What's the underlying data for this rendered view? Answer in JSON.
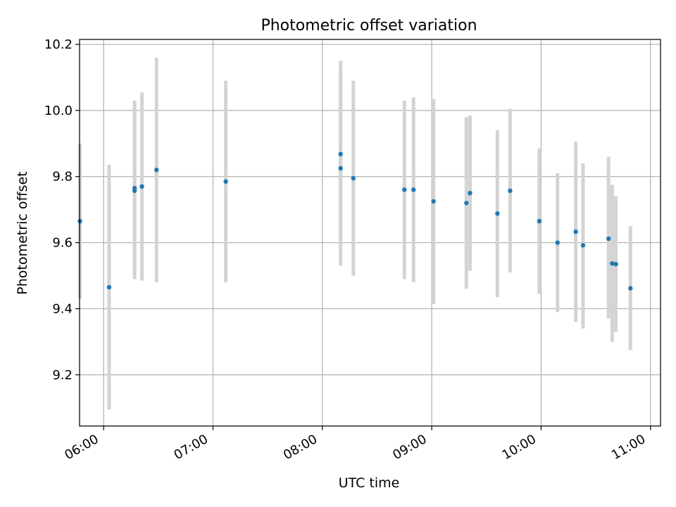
{
  "chart_data": {
    "type": "scatter",
    "title": "Photometric offset variation",
    "xlabel": "UTC time",
    "ylabel": "Photometric offset",
    "x_ticks": [
      "06:00",
      "07:00",
      "08:00",
      "09:00",
      "10:00",
      "11:00"
    ],
    "y_ticks": [
      "9.2",
      "9.4",
      "9.6",
      "9.8",
      "10.0",
      "10.2"
    ],
    "xlim": [
      "05:47",
      "11:05"
    ],
    "ylim": [
      9.045,
      10.215
    ],
    "grid": true,
    "colors": {
      "points": "#1f77b4",
      "errorbars": "#d3d3d3",
      "grid": "#b0b0b0"
    },
    "series": [
      {
        "points": [
          {
            "x": "05:47",
            "y": 9.665,
            "ylow": 9.43,
            "yhigh": 9.9
          },
          {
            "x": "06:03",
            "y": 9.465,
            "ylow": 9.095,
            "yhigh": 9.835
          },
          {
            "x": "06:17",
            "y": 9.765,
            "ylow": 9.49,
            "yhigh": 10.03
          },
          {
            "x": "06:17",
            "y": 9.757,
            "ylow": 9.49,
            "yhigh": 10.02
          },
          {
            "x": "06:21",
            "y": 9.77,
            "ylow": 9.485,
            "yhigh": 10.055
          },
          {
            "x": "06:29",
            "y": 9.82,
            "ylow": 9.48,
            "yhigh": 10.16
          },
          {
            "x": "07:07",
            "y": 9.785,
            "ylow": 9.48,
            "yhigh": 10.09
          },
          {
            "x": "08:10",
            "y": 9.868,
            "ylow": 9.59,
            "yhigh": 10.15
          },
          {
            "x": "08:10",
            "y": 9.825,
            "ylow": 9.53,
            "yhigh": 10.12
          },
          {
            "x": "08:17",
            "y": 9.795,
            "ylow": 9.5,
            "yhigh": 10.09
          },
          {
            "x": "08:45",
            "y": 9.76,
            "ylow": 9.49,
            "yhigh": 10.03
          },
          {
            "x": "08:50",
            "y": 9.76,
            "ylow": 9.48,
            "yhigh": 10.04
          },
          {
            "x": "09:01",
            "y": 9.725,
            "ylow": 9.415,
            "yhigh": 10.035
          },
          {
            "x": "09:19",
            "y": 9.72,
            "ylow": 9.46,
            "yhigh": 9.98
          },
          {
            "x": "09:21",
            "y": 9.75,
            "ylow": 9.515,
            "yhigh": 9.985
          },
          {
            "x": "09:36",
            "y": 9.688,
            "ylow": 9.435,
            "yhigh": 9.94
          },
          {
            "x": "09:43",
            "y": 9.757,
            "ylow": 9.51,
            "yhigh": 10.005
          },
          {
            "x": "09:59",
            "y": 9.665,
            "ylow": 9.445,
            "yhigh": 9.885
          },
          {
            "x": "10:09",
            "y": 9.6,
            "ylow": 9.39,
            "yhigh": 9.81
          },
          {
            "x": "10:19",
            "y": 9.633,
            "ylow": 9.36,
            "yhigh": 9.905
          },
          {
            "x": "10:23",
            "y": 9.592,
            "ylow": 9.34,
            "yhigh": 9.84
          },
          {
            "x": "10:37",
            "y": 9.612,
            "ylow": 9.37,
            "yhigh": 9.86
          },
          {
            "x": "10:39",
            "y": 9.537,
            "ylow": 9.3,
            "yhigh": 9.775
          },
          {
            "x": "10:41",
            "y": 9.535,
            "ylow": 9.33,
            "yhigh": 9.74
          },
          {
            "x": "10:49",
            "y": 9.462,
            "ylow": 9.275,
            "yhigh": 9.65
          }
        ]
      }
    ]
  }
}
